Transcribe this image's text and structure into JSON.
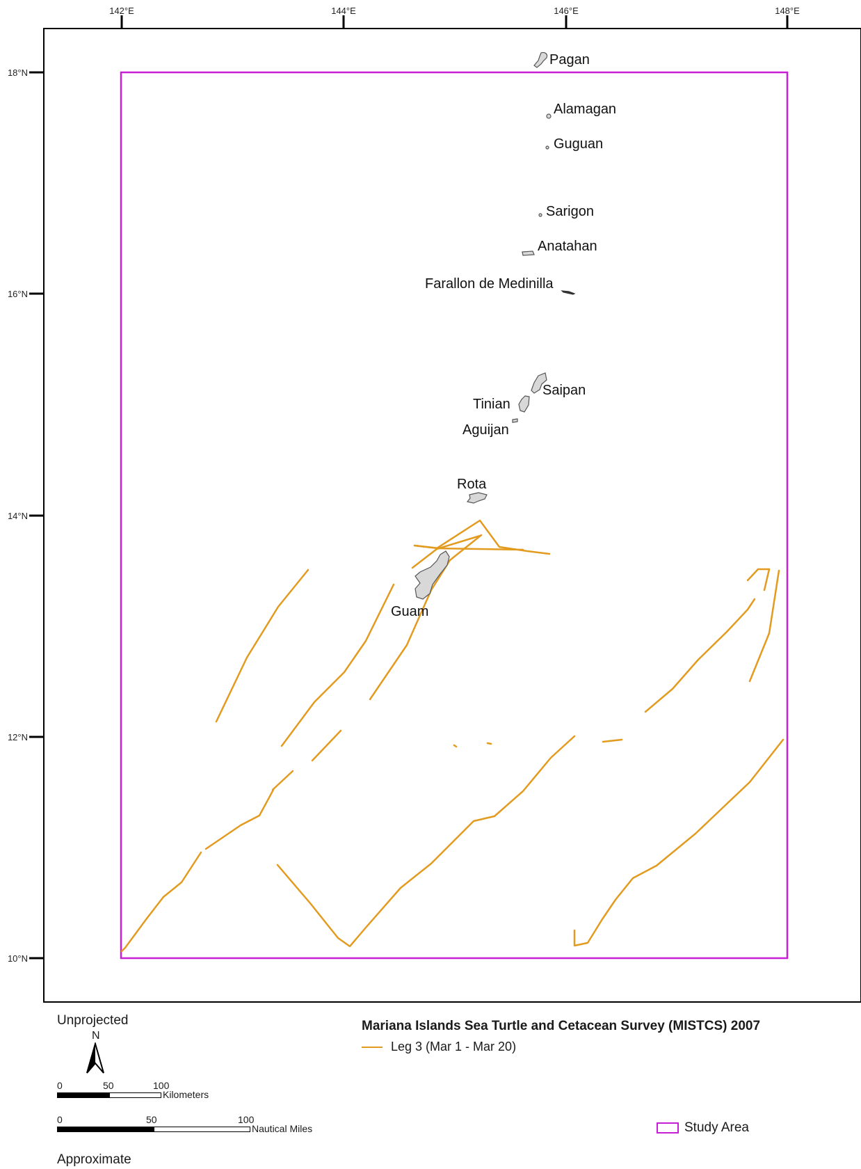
{
  "map": {
    "lon_ticks": [
      "142°E",
      "144°E",
      "146°E",
      "148°E"
    ],
    "lat_ticks": [
      "18°N",
      "16°N",
      "14°N",
      "12°N",
      "10°N"
    ],
    "study_area_bounds": {
      "lon": [
        142,
        148
      ],
      "lat": [
        10,
        18
      ]
    },
    "colors": {
      "track": "#e39b1f",
      "study_area": "#c81ed8",
      "island_fill": "#d8d8d8",
      "island_stroke": "#555555"
    },
    "islands": {
      "pagan": "Pagan",
      "alamagan": "Alamagan",
      "guguan": "Guguan",
      "sarigon": "Sarigon",
      "anatahan": "Anatahan",
      "farallon": "Farallon de Medinilla",
      "saipan": "Saipan",
      "tinian": "Tinian",
      "aguijan": "Aguijan",
      "rota": "Rota",
      "guam": "Guam"
    }
  },
  "legend": {
    "projection": "Unprojected",
    "north": "N",
    "scale_km": {
      "zero": "0",
      "mid": "50",
      "end": "100",
      "unit": "Kilometers"
    },
    "scale_nm": {
      "zero": "0",
      "mid": "50",
      "end": "100",
      "unit": "Nautical Miles"
    },
    "approximate": "Approximate",
    "survey_title": "Mariana Islands Sea Turtle and Cetacean Survey (MISTCS) 2007",
    "leg_label": "Leg 3 (Mar 1 - Mar 20)",
    "study_area_label": "Study Area"
  }
}
